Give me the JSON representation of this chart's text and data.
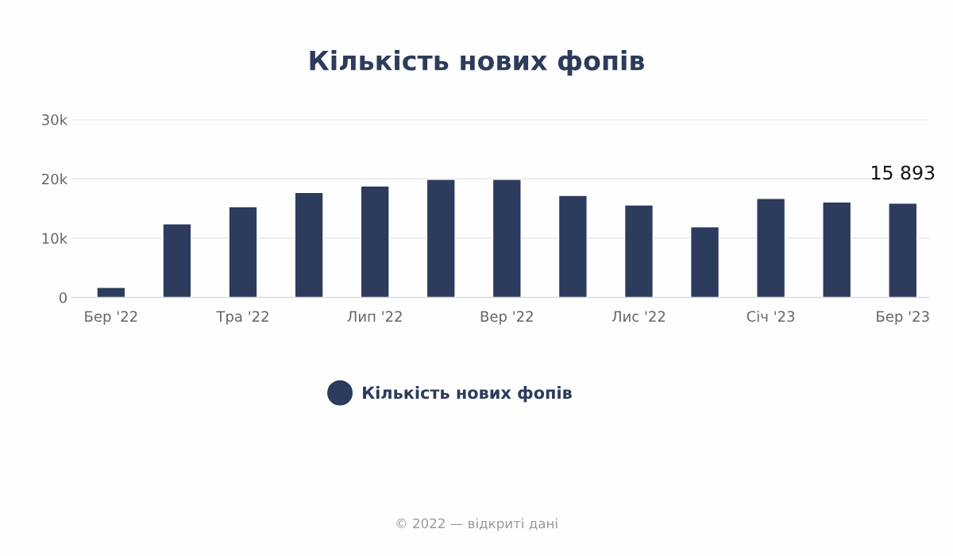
{
  "chart_data": {
    "type": "bar",
    "title": "Кількість нових фопів",
    "categories": [
      "Бер '22",
      null,
      "Тра '22",
      null,
      "Лип '22",
      null,
      "Вер '22",
      null,
      "Лис '22",
      null,
      "Січ '23",
      null,
      "Бер '23"
    ],
    "series": [
      {
        "name": "Кількість нових фопів",
        "color": "#2d3b5c",
        "values": [
          1700,
          12400,
          15300,
          17700,
          18800,
          19900,
          19900,
          17200,
          15600,
          11900,
          16700,
          16100,
          15893
        ],
        "value_labels": [
          null,
          null,
          null,
          null,
          null,
          null,
          null,
          null,
          null,
          null,
          null,
          null,
          "15 893"
        ]
      }
    ],
    "ylim": [
      0,
      30000
    ],
    "yticks": [
      {
        "value": 0,
        "label": "0"
      },
      {
        "value": 10000,
        "label": "10k"
      },
      {
        "value": 20000,
        "label": "20k"
      },
      {
        "value": 30000,
        "label": "30k"
      }
    ],
    "grid": "y",
    "legend": "bottom",
    "annotations": [
      "© 2022 — відкриті дані"
    ]
  }
}
